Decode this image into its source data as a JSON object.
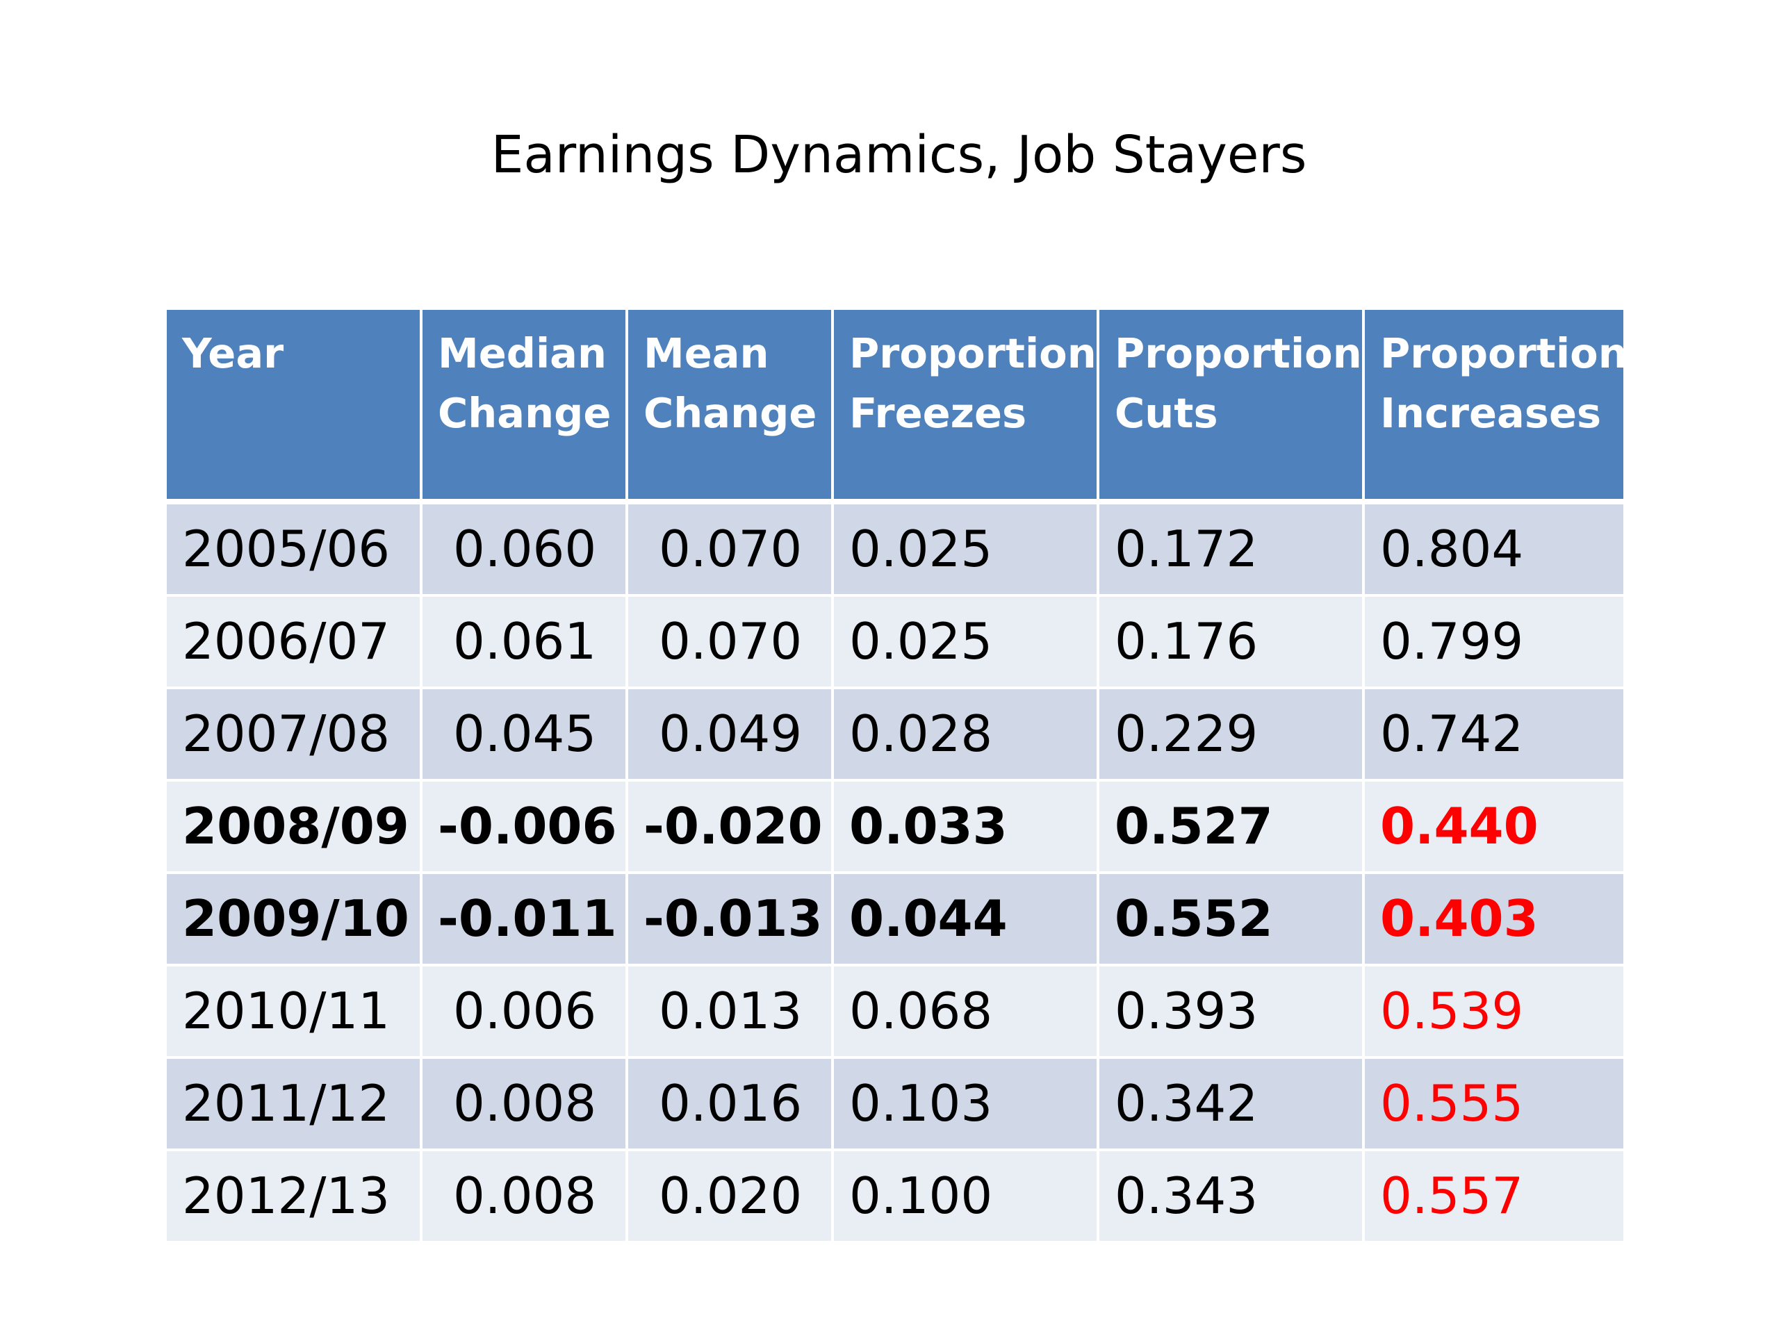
{
  "title": "Earnings Dynamics, Job Stayers",
  "table": {
    "headers": [
      [
        "Year"
      ],
      [
        "Median",
        "Change"
      ],
      [
        "Mean",
        "Change"
      ],
      [
        "Proportion",
        "Freezes"
      ],
      [
        "Proportion",
        "Cuts"
      ],
      [
        "Proportion",
        "Increases"
      ]
    ],
    "rows": [
      {
        "year": "2005/06",
        "median": "0.060",
        "mean": "0.070",
        "freezes": "0.025",
        "cuts": "0.172",
        "increases": "0.804",
        "bold": false,
        "highlight": false
      },
      {
        "year": "2006/07",
        "median": "0.061",
        "mean": "0.070",
        "freezes": "0.025",
        "cuts": "0.176",
        "increases": "0.799",
        "bold": false,
        "highlight": false
      },
      {
        "year": "2007/08",
        "median": "0.045",
        "mean": "0.049",
        "freezes": "0.028",
        "cuts": "0.229",
        "increases": "0.742",
        "bold": false,
        "highlight": false
      },
      {
        "year": "2008/09",
        "median": "-0.006",
        "mean": "-0.020",
        "freezes": "0.033",
        "cuts": "0.527",
        "increases": "0.440",
        "bold": true,
        "highlight": true
      },
      {
        "year": "2009/10",
        "median": "-0.011",
        "mean": "-0.013",
        "freezes": "0.044",
        "cuts": "0.552",
        "increases": "0.403",
        "bold": true,
        "highlight": true
      },
      {
        "year": "2010/11",
        "median": "0.006",
        "mean": "0.013",
        "freezes": "0.068",
        "cuts": "0.393",
        "increases": "0.539",
        "bold": false,
        "highlight": true
      },
      {
        "year": "2011/12",
        "median": "0.008",
        "mean": "0.016",
        "freezes": "0.103",
        "cuts": "0.342",
        "increases": "0.555",
        "bold": false,
        "highlight": true
      },
      {
        "year": "2012/13",
        "median": "0.008",
        "mean": "0.020",
        "freezes": "0.100",
        "cuts": "0.343",
        "increases": "0.557",
        "bold": false,
        "highlight": true
      }
    ]
  },
  "colors": {
    "header_bg": "#4f81bd",
    "row_odd_bg": "#d0d8e8",
    "row_even_bg": "#e9edf4",
    "highlight_text": "#ff0000"
  }
}
